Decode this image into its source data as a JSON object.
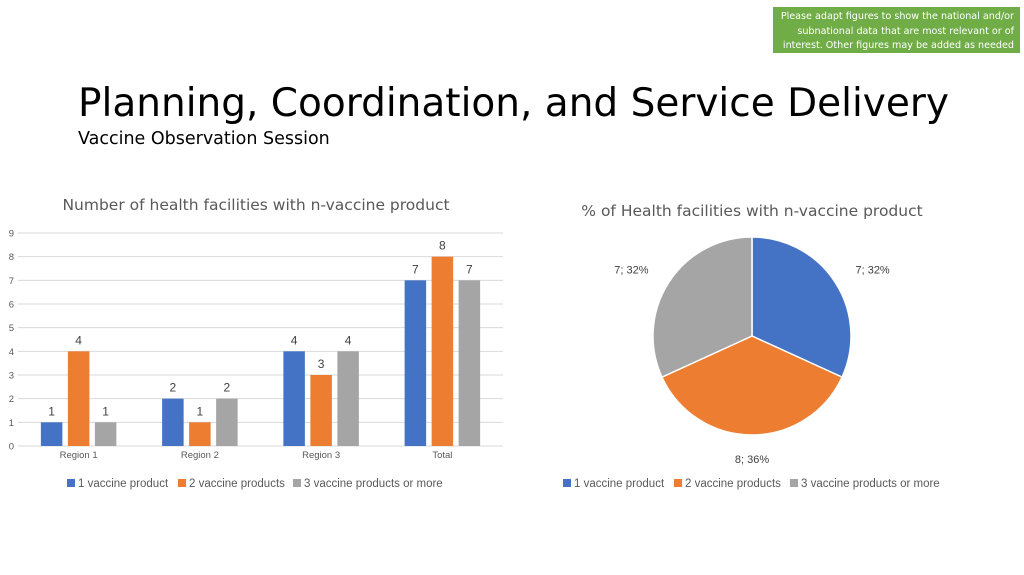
{
  "slide": {
    "note": "Please adapt figures to show the national and/or subnational data that are most relevant or of interest. Other figures may be added as needed",
    "title": "Planning, Coordination, and Service Delivery",
    "subtitle": "Vaccine Observation Session"
  },
  "colors": {
    "series1": "#4472c4",
    "series2": "#ed7d31",
    "series3": "#a5a5a5",
    "note_background": "#70ad47"
  },
  "chart_data": [
    {
      "type": "bar",
      "title": "Number of health facilities with n-vaccine product",
      "categories": [
        "Region 1",
        "Region 2",
        "Region 3",
        "Total"
      ],
      "series": [
        {
          "name": "1 vaccine product",
          "values": [
            1,
            2,
            4,
            7
          ]
        },
        {
          "name": "2 vaccine products",
          "values": [
            4,
            1,
            3,
            8
          ]
        },
        {
          "name": "3 vaccine products or more",
          "values": [
            1,
            2,
            4,
            7
          ]
        }
      ],
      "ylim": [
        0,
        9
      ],
      "yticks": [
        0,
        1,
        2,
        3,
        4,
        5,
        6,
        7,
        8,
        9
      ],
      "grid": true,
      "data_labels": true,
      "legend": "bottom"
    },
    {
      "type": "pie",
      "title": "% of Health facilities with n-vaccine product",
      "slices": [
        {
          "name": "1 vaccine product",
          "value": 7,
          "percent": "32%",
          "label": "7; 32%"
        },
        {
          "name": "2 vaccine products",
          "value": 8,
          "percent": "36%",
          "label": "8; 36%"
        },
        {
          "name": "3 vaccine products or more",
          "value": 7,
          "percent": "32%",
          "label": "7; 32%"
        }
      ],
      "legend": "bottom"
    }
  ]
}
